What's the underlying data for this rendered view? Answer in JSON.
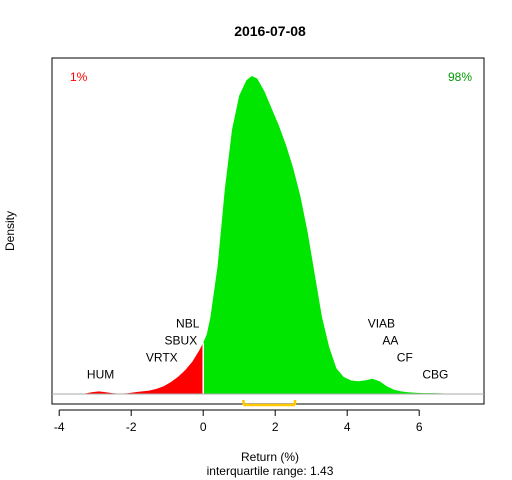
{
  "chart_data": {
    "type": "area",
    "title": "2016-07-08",
    "xlabel": "Return (%)",
    "ylabel": "Density",
    "subtitle": "interquartile range: 1.43",
    "xlim": [
      -4.2,
      7.8
    ],
    "ylim": [
      0,
      0.38
    ],
    "xticks": [
      "-4",
      "-2",
      "0",
      "2",
      "4",
      "6"
    ],
    "xtick_values": [
      -4,
      -2,
      0,
      2,
      4,
      6
    ],
    "split_at": 0,
    "left_pct": "1%",
    "right_pct": "98%",
    "left_color": "#ff0000",
    "right_color": "#00e600",
    "pct_right_color": "#009900",
    "iqr_color": "#ffc800",
    "iqr": [
      1.12,
      2.55
    ],
    "density": {
      "x": [
        -3.3,
        -3.1,
        -2.9,
        -2.7,
        -2.5,
        -2.3,
        -2.1,
        -1.9,
        -1.7,
        -1.5,
        -1.3,
        -1.1,
        -0.9,
        -0.7,
        -0.5,
        -0.3,
        -0.1,
        0,
        0.1,
        0.2,
        0.4,
        0.6,
        0.8,
        1.0,
        1.2,
        1.35,
        1.5,
        1.7,
        1.9,
        2.1,
        2.3,
        2.5,
        2.7,
        2.9,
        3.1,
        3.3,
        3.5,
        3.7,
        3.9,
        4.1,
        4.3,
        4.5,
        4.7,
        4.9,
        5.1,
        5.3,
        5.5,
        5.7,
        5.9,
        6.1,
        6.3,
        6.5,
        6.8,
        7.1
      ],
      "y": [
        0.0005,
        0.002,
        0.003,
        0.002,
        0.0008,
        0.0003,
        0.0008,
        0.002,
        0.003,
        0.004,
        0.006,
        0.009,
        0.014,
        0.02,
        0.028,
        0.038,
        0.052,
        0.06,
        0.07,
        0.09,
        0.15,
        0.24,
        0.31,
        0.35,
        0.368,
        0.373,
        0.37,
        0.355,
        0.335,
        0.315,
        0.292,
        0.265,
        0.232,
        0.19,
        0.14,
        0.09,
        0.055,
        0.03,
        0.02,
        0.016,
        0.015,
        0.016,
        0.018,
        0.015,
        0.009,
        0.005,
        0.003,
        0.002,
        0.0015,
        0.001,
        0.001,
        0.0008,
        0.0005,
        0.0002
      ]
    },
    "annotations": [
      {
        "label": "HUM",
        "x": -2.85,
        "y": 0.018
      },
      {
        "label": "VRTX",
        "x": -1.15,
        "y": 0.038
      },
      {
        "label": "SBUX",
        "x": -0.62,
        "y": 0.058
      },
      {
        "label": "NBL",
        "x": -0.43,
        "y": 0.078
      },
      {
        "label": "VIAB",
        "x": 4.95,
        "y": 0.078
      },
      {
        "label": "AA",
        "x": 5.2,
        "y": 0.058
      },
      {
        "label": "CF",
        "x": 5.6,
        "y": 0.038
      },
      {
        "label": "CBG",
        "x": 6.45,
        "y": 0.018
      }
    ]
  }
}
